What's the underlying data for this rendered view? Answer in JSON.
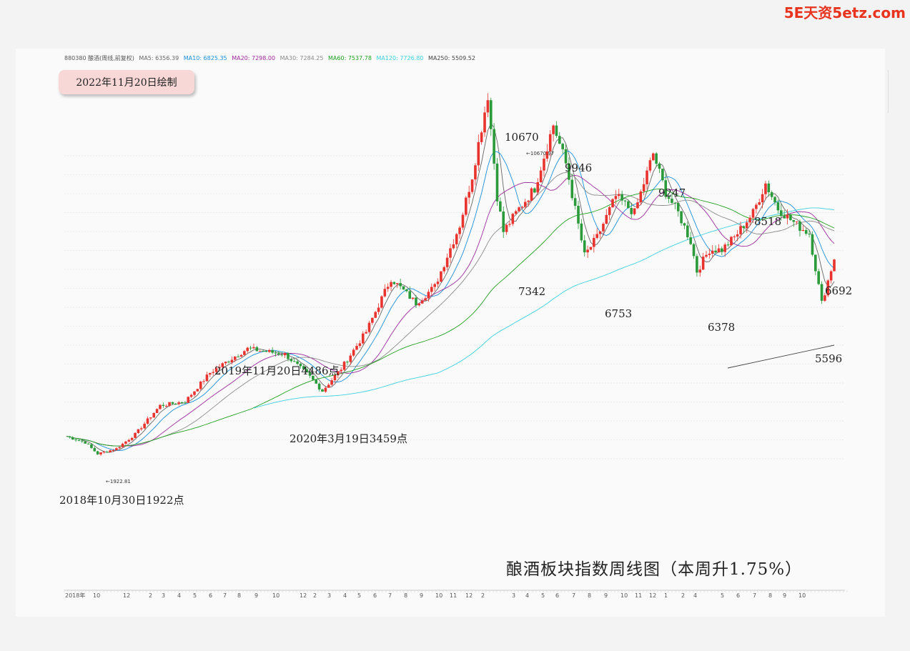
{
  "watermark": "5E天资5etz.com",
  "legend": {
    "code": "880380 酿酒(周线,前复权)",
    "items": [
      {
        "label": "MA5: 6356.39",
        "color": "#666666"
      },
      {
        "label": "MA10: 6825.35",
        "color": "#1a8fd8"
      },
      {
        "label": "MA20: 7298.00",
        "color": "#9b2a9b"
      },
      {
        "label": "MA30: 7284.25",
        "color": "#8a8a8a"
      },
      {
        "label": "MA60: 7537.78",
        "color": "#22a022"
      },
      {
        "label": "MA120: 7726.80",
        "color": "#3fd0e0"
      },
      {
        "label": "MA250: 5509.52",
        "color": "#444444"
      }
    ]
  },
  "date_badge": "2022年11月20日绘制",
  "chart_title": "酿酒板块指数周线图（本周升1.75%）",
  "chart_data": {
    "type": "candlestick",
    "x": [
      "2018-10",
      "2018-12",
      "2019-02",
      "2019-04",
      "2019-06",
      "2019-08",
      "2019-10",
      "2019-12",
      "2020-02",
      "2020-04",
      "2020-06",
      "2020-08",
      "2020-10",
      "2020-12",
      "2021-02",
      "2021-04",
      "2021-06",
      "2021-08",
      "2021-10",
      "2021-12",
      "2022-02",
      "2022-04",
      "2022-06",
      "2022-08",
      "2022-10",
      "2022-11"
    ],
    "series": [
      {
        "name": "MA5",
        "color": "#666666"
      },
      {
        "name": "MA10",
        "color": "#1a8fd8"
      },
      {
        "name": "MA20",
        "color": "#9b2a9b"
      },
      {
        "name": "MA30",
        "color": "#8a8a8a"
      },
      {
        "name": "MA60",
        "color": "#22a022"
      },
      {
        "name": "MA120",
        "color": "#3fd0e0"
      },
      {
        "name": "MA250",
        "color": "#444444"
      }
    ],
    "key_points": [
      {
        "label": "10670",
        "value": 10670
      },
      {
        "label": "9946",
        "value": 9946
      },
      {
        "label": "7342",
        "value": 7342
      },
      {
        "label": "9247",
        "value": 9247
      },
      {
        "label": "6753",
        "value": 6753
      },
      {
        "label": "8518",
        "value": 8518
      },
      {
        "label": "6378",
        "value": 6378
      },
      {
        "label": "6692",
        "value": 6692
      },
      {
        "label": "5596",
        "value": 5596
      }
    ],
    "annotations": [
      "2018年10月30日1922点",
      "2019年11月20日4486点",
      "2020年3月19日3459点"
    ],
    "small_labels": [
      "10670.97",
      "1922.81"
    ],
    "x_ticks": [
      "2018年",
      "10",
      "12",
      "2",
      "3",
      "4",
      "5",
      "6",
      "7",
      "8",
      "9",
      "10",
      "12",
      "2",
      "3",
      "4",
      "5",
      "6",
      "7",
      "8",
      "9",
      "10",
      "11",
      "12",
      "2",
      "3",
      "4",
      "5",
      "6",
      "7",
      "8",
      "9",
      "10",
      "11",
      "12",
      "1",
      "2",
      "4",
      "5",
      "6",
      "7",
      "8",
      "9",
      "10"
    ],
    "colors": {
      "up": "#e8332f",
      "down": "#2a9a3a"
    },
    "grid": true
  }
}
